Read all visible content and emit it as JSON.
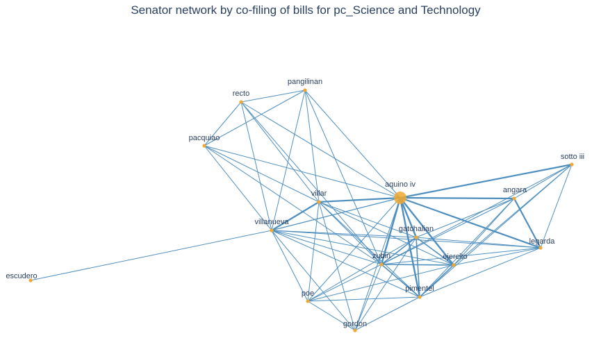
{
  "title": "Senator network by co-filing of bills for pc_Science and Technology",
  "colors": {
    "edge": "#4f8fc0",
    "node": "#f0a830",
    "background": "#ffffff"
  },
  "nodes": [
    {
      "id": "aquino iv",
      "label": "aquino iv",
      "size": "large"
    },
    {
      "id": "villar",
      "label": "villar",
      "size": "small"
    },
    {
      "id": "villanueva",
      "label": "villanueva",
      "size": "small"
    },
    {
      "id": "gatchalian",
      "label": "gatchalian",
      "size": "small"
    },
    {
      "id": "zubiri",
      "label": "zubiri",
      "size": "small"
    },
    {
      "id": "ejercito",
      "label": "ejercito",
      "size": "small"
    },
    {
      "id": "pimentel",
      "label": "pimentel",
      "size": "small"
    },
    {
      "id": "legarda",
      "label": "legarda",
      "size": "small"
    },
    {
      "id": "angara",
      "label": "angara",
      "size": "small"
    },
    {
      "id": "sotto iii",
      "label": "sotto iii",
      "size": "small"
    },
    {
      "id": "poe",
      "label": "poe",
      "size": "small"
    },
    {
      "id": "gordon",
      "label": "gordon",
      "size": "small"
    },
    {
      "id": "escudero",
      "label": "escudero",
      "size": "small"
    },
    {
      "id": "pacquiao",
      "label": "pacquiao",
      "size": "small"
    },
    {
      "id": "recto",
      "label": "recto",
      "size": "small"
    },
    {
      "id": "pangilinan",
      "label": "pangilinan",
      "size": "small"
    }
  ],
  "edges": [
    [
      "aquino iv",
      "villar",
      2.2
    ],
    [
      "aquino iv",
      "villanueva",
      1.2
    ],
    [
      "aquino iv",
      "gatchalian",
      2.4
    ],
    [
      "aquino iv",
      "zubiri",
      2.4
    ],
    [
      "aquino iv",
      "ejercito",
      2.4
    ],
    [
      "aquino iv",
      "pimentel",
      2.4
    ],
    [
      "aquino iv",
      "legarda",
      2.2
    ],
    [
      "aquino iv",
      "angara",
      2.2
    ],
    [
      "aquino iv",
      "sotto iii",
      2.2
    ],
    [
      "aquino iv",
      "poe",
      1
    ],
    [
      "aquino iv",
      "gordon",
      1
    ],
    [
      "aquino iv",
      "pangilinan",
      1
    ],
    [
      "aquino iv",
      "recto",
      1
    ],
    [
      "aquino iv",
      "pacquiao",
      1
    ],
    [
      "villar",
      "villanueva",
      2.2
    ],
    [
      "villar",
      "pangilinan",
      1
    ],
    [
      "villar",
      "pacquiao",
      1
    ],
    [
      "villar",
      "recto",
      1
    ],
    [
      "villar",
      "poe",
      1
    ],
    [
      "villar",
      "gordon",
      1
    ],
    [
      "villar",
      "zubiri",
      1
    ],
    [
      "villar",
      "ejercito",
      1
    ],
    [
      "villar",
      "pimentel",
      1
    ],
    [
      "villar",
      "gatchalian",
      1
    ],
    [
      "villanueva",
      "escudero",
      1
    ],
    [
      "villanueva",
      "recto",
      1
    ],
    [
      "villanueva",
      "pangilinan",
      1
    ],
    [
      "villanueva",
      "pacquiao",
      1
    ],
    [
      "villanueva",
      "gatchalian",
      1
    ],
    [
      "villanueva",
      "zubiri",
      1
    ],
    [
      "villanueva",
      "ejercito",
      1
    ],
    [
      "villanueva",
      "pimentel",
      1
    ],
    [
      "villanueva",
      "legarda",
      1
    ],
    [
      "villanueva",
      "poe",
      1
    ],
    [
      "villanueva",
      "gordon",
      1
    ],
    [
      "recto",
      "pangilinan",
      1
    ],
    [
      "recto",
      "pacquiao",
      1
    ],
    [
      "recto",
      "zubiri",
      1
    ],
    [
      "pangilinan",
      "pacquiao",
      1
    ],
    [
      "pangilinan",
      "zubiri",
      1
    ],
    [
      "pacquiao",
      "zubiri",
      1
    ],
    [
      "gatchalian",
      "zubiri",
      1.6
    ],
    [
      "gatchalian",
      "ejercito",
      1.6
    ],
    [
      "gatchalian",
      "pimentel",
      1.6
    ],
    [
      "gatchalian",
      "legarda",
      1
    ],
    [
      "gatchalian",
      "angara",
      1
    ],
    [
      "gatchalian",
      "poe",
      1
    ],
    [
      "gatchalian",
      "gordon",
      1
    ],
    [
      "zubiri",
      "ejercito",
      1.6
    ],
    [
      "zubiri",
      "pimentel",
      1.6
    ],
    [
      "zubiri",
      "legarda",
      1
    ],
    [
      "zubiri",
      "angara",
      1
    ],
    [
      "zubiri",
      "sotto iii",
      1
    ],
    [
      "zubiri",
      "poe",
      1
    ],
    [
      "zubiri",
      "gordon",
      1
    ],
    [
      "ejercito",
      "pimentel",
      1.6
    ],
    [
      "ejercito",
      "legarda",
      1
    ],
    [
      "ejercito",
      "angara",
      1
    ],
    [
      "ejercito",
      "sotto iii",
      1
    ],
    [
      "ejercito",
      "poe",
      1
    ],
    [
      "pimentel",
      "legarda",
      1
    ],
    [
      "pimentel",
      "angara",
      1
    ],
    [
      "pimentel",
      "sotto iii",
      1
    ],
    [
      "pimentel",
      "poe",
      1
    ],
    [
      "pimentel",
      "gordon",
      1
    ],
    [
      "angara",
      "legarda",
      2.2
    ],
    [
      "sotto iii",
      "legarda",
      1
    ],
    [
      "angara",
      "sotto iii",
      1
    ],
    [
      "poe",
      "gordon",
      1
    ]
  ]
}
